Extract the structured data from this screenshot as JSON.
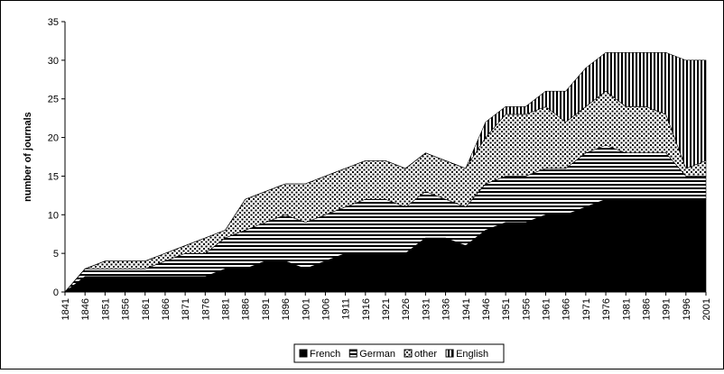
{
  "chart_data": {
    "type": "stacked-area",
    "y_label": "number of journals",
    "x": [
      1841,
      1846,
      1851,
      1856,
      1861,
      1866,
      1871,
      1876,
      1881,
      1886,
      1891,
      1896,
      1901,
      1906,
      1911,
      1916,
      1921,
      1926,
      1931,
      1936,
      1941,
      1946,
      1951,
      1956,
      1961,
      1966,
      1971,
      1976,
      1981,
      1986,
      1991,
      1996,
      2001
    ],
    "series": [
      {
        "name": "French",
        "color": "#000000",
        "pattern": "solid",
        "values": [
          0,
          2,
          2,
          2,
          2,
          2,
          2,
          2,
          3,
          3,
          4,
          4,
          3,
          4,
          5,
          5,
          5,
          5,
          7,
          7,
          6,
          8,
          9,
          9,
          10,
          10,
          11,
          12,
          12,
          12,
          12,
          12,
          12
        ]
      },
      {
        "name": "German",
        "color": "#000000",
        "pattern": "horizontal",
        "values": [
          0,
          1,
          1,
          1,
          1,
          2,
          3,
          3,
          4,
          5,
          5,
          6,
          6,
          6,
          6,
          7,
          7,
          6,
          6,
          5,
          5,
          6,
          6,
          6,
          6,
          6,
          7,
          7,
          6,
          6,
          6,
          3,
          3
        ]
      },
      {
        "name": "other",
        "color": "#000000",
        "pattern": "dots",
        "values": [
          0,
          0,
          1,
          1,
          1,
          1,
          1,
          2,
          1,
          4,
          4,
          4,
          5,
          5,
          5,
          5,
          5,
          5,
          5,
          5,
          5,
          6,
          8,
          8,
          8,
          6,
          6,
          7,
          6,
          6,
          5,
          1,
          2
        ]
      },
      {
        "name": "English",
        "color": "#000000",
        "pattern": "vertical",
        "values": [
          0,
          0,
          0,
          0,
          0,
          0,
          0,
          0,
          0,
          0,
          0,
          0,
          0,
          0,
          0,
          0,
          0,
          0,
          0,
          0,
          0,
          2,
          1,
          1,
          2,
          4,
          5,
          5,
          7,
          7,
          8,
          14,
          13
        ]
      }
    ],
    "xlim": [
      1841,
      2001
    ],
    "xticks": [
      1841,
      1846,
      1851,
      1856,
      1861,
      1866,
      1871,
      1876,
      1881,
      1886,
      1891,
      1896,
      1901,
      1906,
      1911,
      1916,
      1921,
      1926,
      1931,
      1936,
      1941,
      1946,
      1951,
      1956,
      1961,
      1966,
      1971,
      1976,
      1981,
      1986,
      1991,
      1996,
      2001
    ],
    "ylim": [
      0,
      35
    ],
    "yticks": [
      0,
      5,
      10,
      15,
      20,
      25,
      30,
      35
    ],
    "legend": "bottom"
  }
}
